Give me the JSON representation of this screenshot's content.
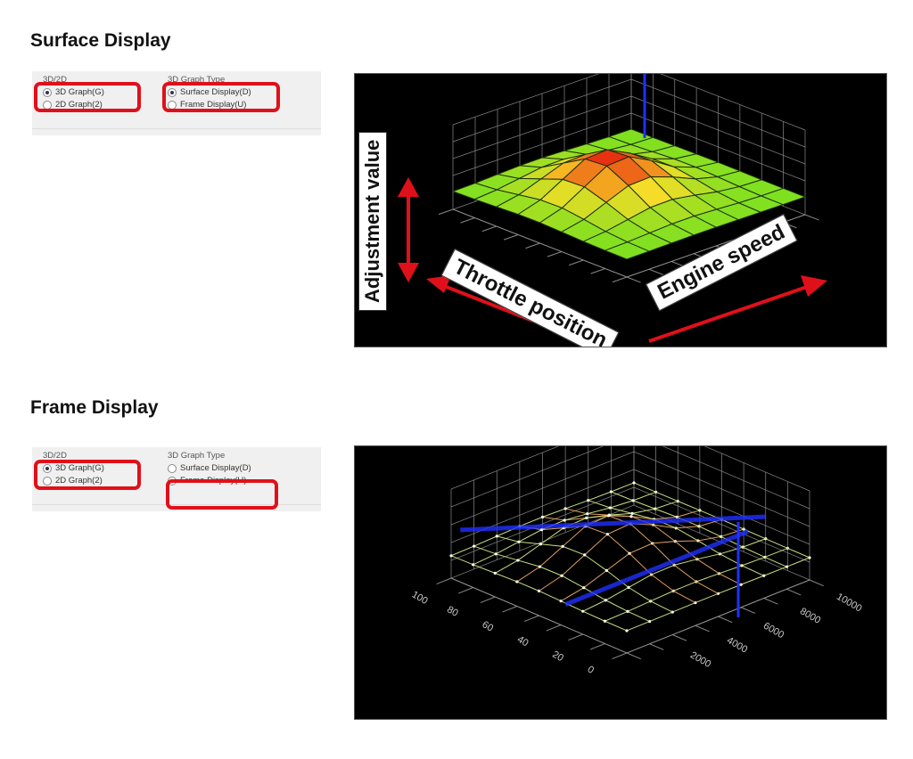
{
  "sections": [
    {
      "title": "Surface Display",
      "group_3d2d": {
        "label": "3D/2D",
        "options": [
          "3D Graph(G)",
          "2D Graph(2)"
        ],
        "selected": 0
      },
      "group_type": {
        "label": "3D Graph Type",
        "options": [
          "Surface Display(D)",
          "Frame Display(U)"
        ],
        "selected": 0
      },
      "annotations": {
        "z": "Adjustment value",
        "throttle": "Throttle position",
        "engine": "Engine speed"
      }
    },
    {
      "title": "Frame Display",
      "group_3d2d": {
        "label": "3D/2D",
        "options": [
          "3D Graph(G)",
          "2D Graph(2)"
        ],
        "selected": 0
      },
      "group_type": {
        "label": "3D Graph Type",
        "options": [
          "Surface Display(D)",
          "Frame Display(U)"
        ],
        "selected": 1
      },
      "engine_ticks": [
        "10000",
        "8000",
        "6000",
        "4000",
        "2000"
      ],
      "throttle_ticks": [
        "100",
        "80",
        "60",
        "40",
        "20",
        "0"
      ]
    }
  ],
  "colors": {
    "highlight": "#e0101a",
    "surface_low": "#7fe020",
    "surface_high": "#e83010",
    "cursor": "#2030ff"
  }
}
